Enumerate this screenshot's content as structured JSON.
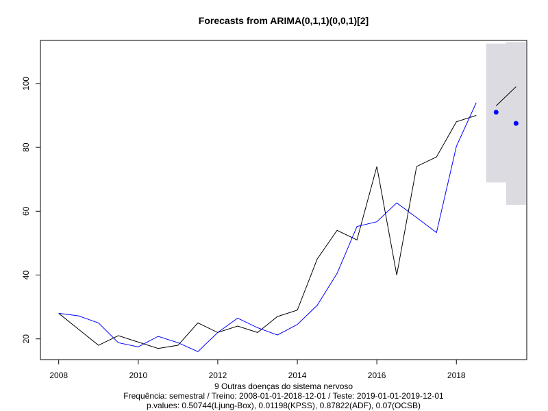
{
  "chart_data": {
    "type": "line",
    "title": "Forecasts from ARIMA(0,1,1)(0,0,1)[2]",
    "xlabel_lines": [
      "9 Outras doenças do sistema nervoso",
      "Frequência: semestral / Treino: 2008-01-01-2018-12-01 / Teste: 2019-01-01-2019-12-01",
      "p.values: 0.50744(Ljung-Box), 0.01198(KPSS), 0.87822(ADF), 0.07(OCSB)"
    ],
    "xlim": [
      2007.54,
      2019.77
    ],
    "ylim": [
      13.5,
      113.5
    ],
    "x_ticks": [
      2008,
      2010,
      2012,
      2014,
      2016,
      2018
    ],
    "x_tick_labels": [
      "2008",
      "2010",
      "2012",
      "2014",
      "2016",
      "2018"
    ],
    "y_ticks": [
      20,
      40,
      60,
      80,
      100
    ],
    "y_tick_labels": [
      "20",
      "40",
      "60",
      "80",
      "100"
    ],
    "grid": false,
    "legend": "none",
    "x": [
      2008.0,
      2008.5,
      2009.0,
      2009.5,
      2010.0,
      2010.5,
      2011.0,
      2011.5,
      2012.0,
      2012.5,
      2013.0,
      2013.5,
      2014.0,
      2014.5,
      2015.0,
      2015.5,
      2016.0,
      2016.5,
      2017.0,
      2017.5,
      2018.0,
      2018.5
    ],
    "series": [
      {
        "color": "#000000",
        "values": [
          28,
          23,
          18,
          21,
          19,
          17,
          18,
          25,
          22,
          24,
          22,
          27,
          29,
          45,
          54,
          51,
          74,
          40,
          74,
          77,
          88,
          90
        ]
      },
      {
        "color": "#0000ff",
        "values": [
          28,
          27.2,
          25,
          18.8,
          17.5,
          20.8,
          18.8,
          16,
          22,
          26.5,
          23.5,
          21.2,
          24.5,
          30.5,
          40.5,
          55.2,
          56.7,
          62.6,
          58,
          53.3,
          80.3,
          94
        ]
      }
    ],
    "forecast": {
      "line_color": "#000000",
      "x": [
        2019.0,
        2019.5
      ],
      "values": [
        93,
        99
      ]
    },
    "test_points": {
      "color": "#0000ff",
      "x": [
        2019.0,
        2019.5
      ],
      "values": [
        91,
        87.5
      ]
    },
    "prediction_intervals": {
      "fill_color": "#dbdbe1",
      "x": [
        2019.0,
        2019.5
      ],
      "lower": [
        69,
        62
      ],
      "upper": [
        112.5,
        113
      ]
    }
  }
}
